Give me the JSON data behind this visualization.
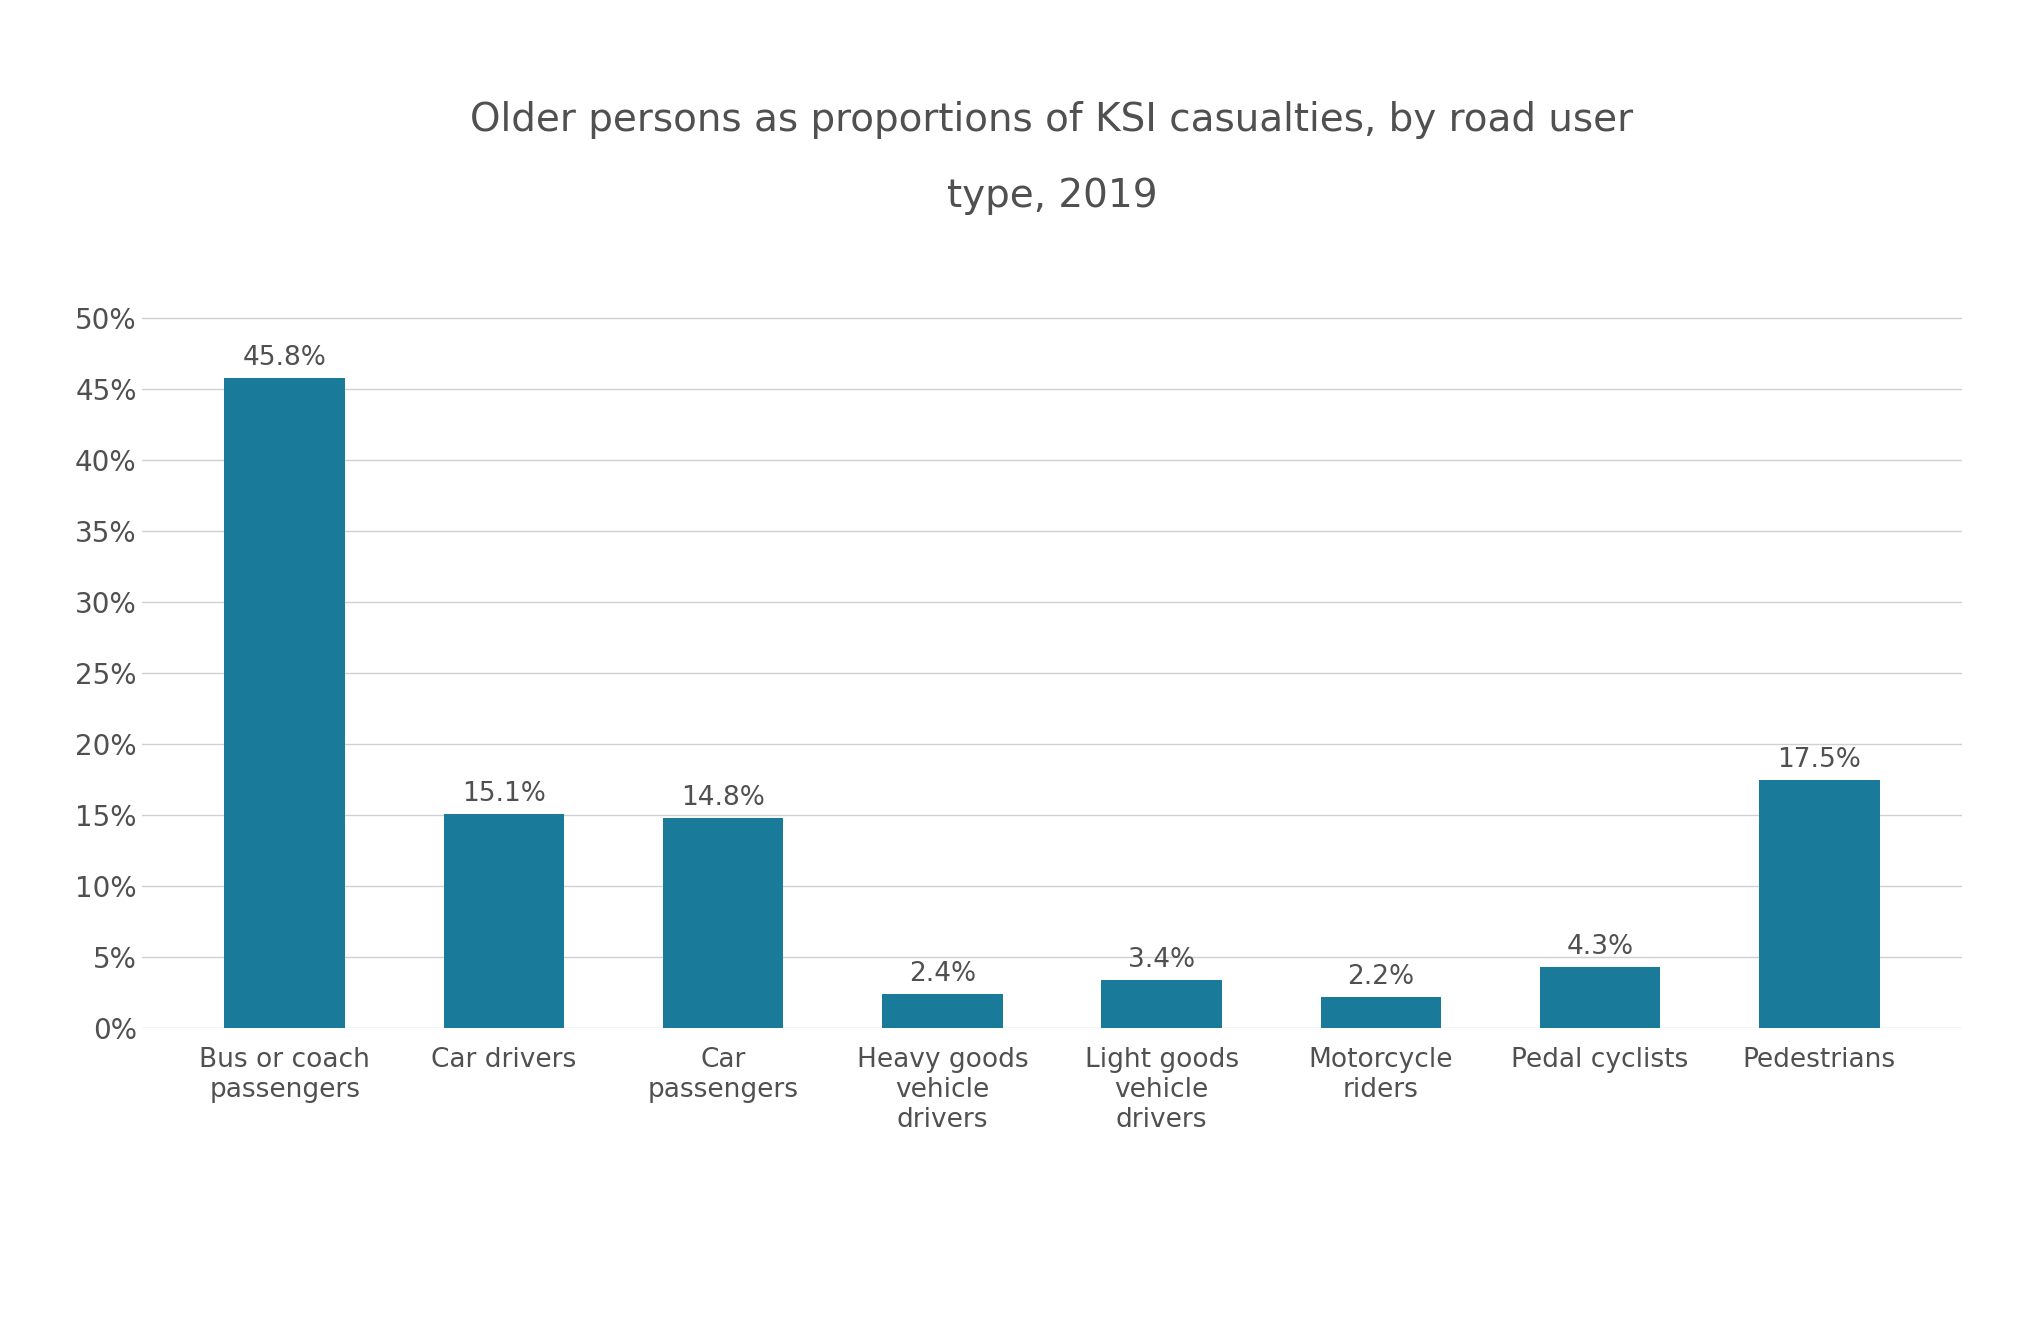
{
  "title_line1": "Older persons as proportions of KSI casualties, by road user",
  "title_line2": "type, 2019",
  "categories": [
    "Bus or coach\npassengers",
    "Car drivers",
    "Car\npassengers",
    "Heavy goods\nvehicle\ndrivers",
    "Light goods\nvehicle\ndrivers",
    "Motorcycle\nriders",
    "Pedal cyclists",
    "Pedestrians"
  ],
  "values": [
    45.8,
    15.1,
    14.8,
    2.4,
    3.4,
    2.2,
    4.3,
    17.5
  ],
  "bar_color": "#1a7a9a",
  "label_color": "#505050",
  "title_color": "#505050",
  "tick_color": "#505050",
  "background_color": "#ffffff",
  "grid_color": "#d0d0d0",
  "ylim": [
    0,
    52
  ],
  "yticks": [
    0,
    5,
    10,
    15,
    20,
    25,
    30,
    35,
    40,
    45,
    50
  ],
  "title_fontsize": 28,
  "label_fontsize": 19,
  "tick_fontsize": 20,
  "value_fontsize": 19
}
